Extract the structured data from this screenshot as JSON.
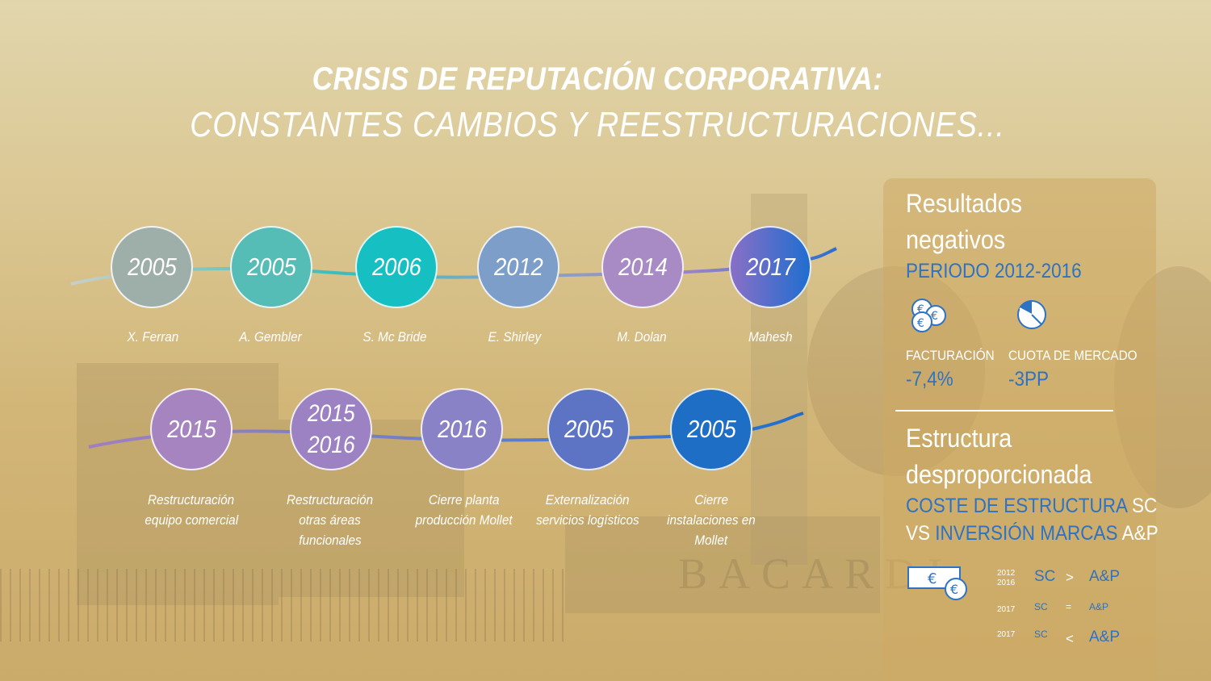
{
  "title": {
    "line1": "CRISIS DE REPUTACIÓN CORPORATIVA:",
    "line2": "CONSTANTES CAMBIOS Y REESTRUCTURACIONES..."
  },
  "background": {
    "watermark_text": "BACARDI"
  },
  "timeline_row1": [
    {
      "year": "2005",
      "label": "X. Ferran",
      "color": "#9eaea9"
    },
    {
      "year": "2005",
      "label": "A. Gembler",
      "color": "#55bcb6"
    },
    {
      "year": "2006",
      "label": "S. Mc Bride",
      "color": "#16c0c2"
    },
    {
      "year": "2012",
      "label": "E. Shirley",
      "color": "#7d9ec8"
    },
    {
      "year": "2014",
      "label": "M. Dolan",
      "color": "#a88ac4"
    },
    {
      "year": "2017",
      "label": "Mahesh",
      "color": "#4f63c6"
    }
  ],
  "timeline_row2": [
    {
      "year": "2015",
      "year2": "",
      "label1": "Restructuración",
      "label2": "equipo comercial",
      "label3": "",
      "color": "#a684c0"
    },
    {
      "year": "2015",
      "year2": "2016",
      "label1": "Restructuración",
      "label2": "otras áreas",
      "label3": "funcionales",
      "color": "#9c82c2"
    },
    {
      "year": "2016",
      "year2": "",
      "label1": "Cierre planta",
      "label2": "producción Mollet",
      "label3": "",
      "color": "#8a82c6"
    },
    {
      "year": "2005",
      "year2": "",
      "label1": "Externalización",
      "label2": "servicios logísticos",
      "label3": "",
      "color": "#5c74c3"
    },
    {
      "year": "2005",
      "year2": "",
      "label1": "Cierre",
      "label2": "instalaciones en",
      "label3": "Mollet",
      "color": "#1f6ec6"
    }
  ],
  "panel": {
    "heading1_line1": "Resultados",
    "heading1_line2": "negativos",
    "period": "PERIODO 2012-2016",
    "stat1_label": "FACTURACIÓN",
    "stat1_value": "-7,4%",
    "stat2_label": "CUOTA DE MERCADO",
    "stat2_value": "-3PP",
    "heading2_line1": "Estructura",
    "heading2_line2": "desproporcionada",
    "sub_line1_blue": "COSTE DE ESTRUCTURA",
    "sub_line1_white": "SC",
    "sub_line2_white_pre": "VS",
    "sub_line2_blue": "INVERSIÓN MARCAS",
    "sub_line2_white": "A&P",
    "comparisons": [
      {
        "year_a": "2012",
        "year_b": "2016",
        "left": "SC",
        "op": ">",
        "right": "A&P"
      },
      {
        "year_a": "2017",
        "year_b": "",
        "left": "SC",
        "op": "=",
        "right": "A&P"
      },
      {
        "year_a": "2017",
        "year_b": "",
        "left": "SC",
        "op": "<",
        "right": "A&P"
      }
    ]
  },
  "icons": {
    "coins": "euro-coins-icon",
    "pie": "pie-chart-icon",
    "card": "euro-card-icon"
  },
  "colors": {
    "accent_blue": "#2e72c4",
    "panel_bg": "#cdaa64"
  }
}
